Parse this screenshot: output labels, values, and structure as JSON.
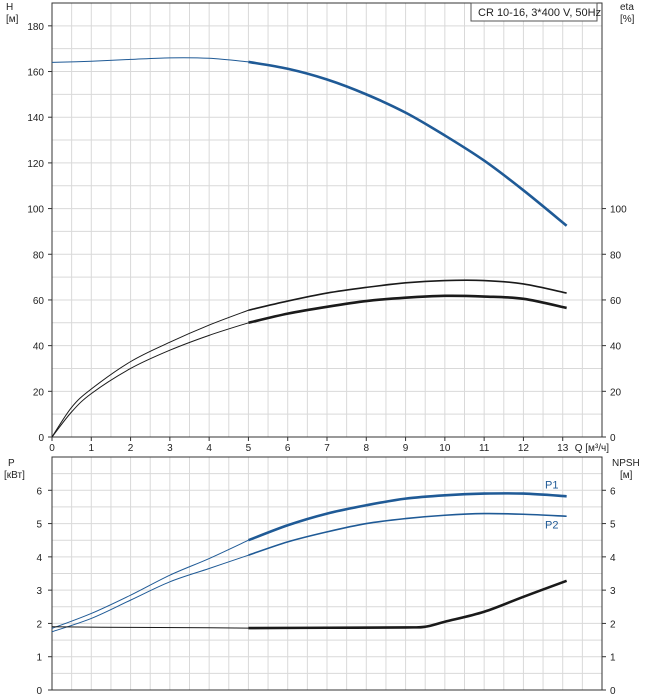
{
  "chart_data": [
    {
      "type": "line",
      "title": "CR 10-16, 3*400 V, 50Hz",
      "xlabel": "Q [м³/ч]",
      "ylabel_left": [
        "H",
        "[м]"
      ],
      "ylabel_right": [
        "eta",
        "[%]"
      ],
      "xlim": [
        0,
        14
      ],
      "ylim": [
        0,
        190
      ],
      "x_ticks": [
        0,
        1,
        2,
        3,
        4,
        5,
        6,
        7,
        8,
        9,
        10,
        11,
        12,
        13
      ],
      "y_ticks_left": [
        0,
        20,
        40,
        60,
        80,
        100,
        120,
        140,
        160,
        180
      ],
      "y_ticks_right": [
        0,
        20,
        40,
        60,
        80,
        100
      ],
      "grid": true,
      "series": [
        {
          "id": "head",
          "color": "#1f5a96",
          "style": "thin-then-thick",
          "points": [
            [
              0,
              164
            ],
            [
              1,
              164.5
            ],
            [
              2,
              165.3
            ],
            [
              3,
              166
            ],
            [
              4,
              165.8
            ],
            [
              5,
              164.2
            ],
            [
              6,
              161.2
            ],
            [
              7,
              156.5
            ],
            [
              8,
              150
            ],
            [
              9,
              142
            ],
            [
              10,
              132
            ],
            [
              11,
              121
            ],
            [
              12,
              108
            ],
            [
              13.1,
              92.5
            ]
          ]
        },
        {
          "id": "efficiency-1",
          "color": "#1a1a1a",
          "style": "thin-then-medium",
          "points": [
            [
              0,
              0
            ],
            [
              0.5,
              13
            ],
            [
              1,
              21
            ],
            [
              2,
              33
            ],
            [
              3,
              41.5
            ],
            [
              4,
              49
            ],
            [
              5,
              55.5
            ],
            [
              6,
              59.5
            ],
            [
              7,
              63
            ],
            [
              8,
              65.5
            ],
            [
              9,
              67.5
            ],
            [
              10,
              68.5
            ],
            [
              11,
              68.5
            ],
            [
              12,
              67
            ],
            [
              13.1,
              63
            ]
          ]
        },
        {
          "id": "efficiency-2",
          "color": "#1a1a1a",
          "style": "thin-then-thick",
          "points": [
            [
              0,
              0
            ],
            [
              0.5,
              11
            ],
            [
              1,
              19
            ],
            [
              2,
              30
            ],
            [
              3,
              38
            ],
            [
              4,
              44.5
            ],
            [
              5,
              50
            ],
            [
              6,
              54
            ],
            [
              7,
              57
            ],
            [
              8,
              59.5
            ],
            [
              9,
              61
            ],
            [
              10,
              61.8
            ],
            [
              11,
              61.5
            ],
            [
              12,
              60.5
            ],
            [
              13.1,
              56.5
            ]
          ]
        }
      ]
    },
    {
      "type": "line",
      "xlabel": "",
      "ylabel_left": [
        "P",
        "[кВт]"
      ],
      "ylabel_right": [
        "NPSH",
        "[м]"
      ],
      "xlim": [
        0,
        14
      ],
      "ylim": [
        0,
        7
      ],
      "y_ticks_left": [
        0,
        1,
        2,
        3,
        4,
        5,
        6
      ],
      "y_ticks_right": [
        0,
        1,
        2,
        3,
        4,
        5,
        6
      ],
      "grid": true,
      "series": [
        {
          "id": "P1",
          "name": "P1",
          "color": "#1f5a96",
          "style": "thin-then-thick",
          "points": [
            [
              0,
              1.85
            ],
            [
              1,
              2.3
            ],
            [
              2,
              2.85
            ],
            [
              3,
              3.45
            ],
            [
              4,
              3.95
            ],
            [
              5,
              4.5
            ],
            [
              6,
              4.95
            ],
            [
              7,
              5.3
            ],
            [
              8,
              5.55
            ],
            [
              9,
              5.75
            ],
            [
              10,
              5.85
            ],
            [
              11,
              5.9
            ],
            [
              12,
              5.9
            ],
            [
              13.1,
              5.82
            ]
          ]
        },
        {
          "id": "P2",
          "name": "P2",
          "color": "#1f5a96",
          "style": "thin-then-medium",
          "points": [
            [
              0,
              1.75
            ],
            [
              1,
              2.15
            ],
            [
              2,
              2.7
            ],
            [
              3,
              3.25
            ],
            [
              4,
              3.65
            ],
            [
              5,
              4.05
            ],
            [
              6,
              4.45
            ],
            [
              7,
              4.75
            ],
            [
              8,
              5
            ],
            [
              9,
              5.15
            ],
            [
              10,
              5.25
            ],
            [
              11,
              5.3
            ],
            [
              12,
              5.28
            ],
            [
              13.1,
              5.22
            ]
          ]
        },
        {
          "id": "NPSH",
          "color": "#1a1a1a",
          "style": "thin-then-thick",
          "points": [
            [
              0,
              1.9
            ],
            [
              2,
              1.88
            ],
            [
              4,
              1.87
            ],
            [
              5,
              1.86
            ],
            [
              7,
              1.87
            ],
            [
              9,
              1.88
            ],
            [
              9.5,
              1.9
            ],
            [
              10,
              2.05
            ],
            [
              11,
              2.35
            ],
            [
              12,
              2.8
            ],
            [
              13.1,
              3.28
            ]
          ]
        }
      ]
    }
  ]
}
